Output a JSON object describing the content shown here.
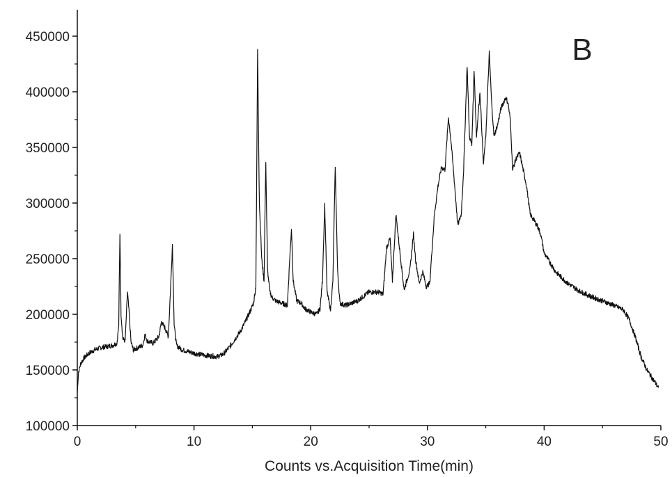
{
  "chart_data": {
    "type": "line",
    "title": "",
    "panel_label": "B",
    "xlabel": "Counts vs.Acquisition Time(min)",
    "ylabel": "",
    "xlim": [
      0,
      50
    ],
    "ylim": [
      100000,
      460000
    ],
    "x_ticks": [
      0,
      10,
      20,
      30,
      40,
      50
    ],
    "x_tick_labels": [
      "0",
      "10",
      "20",
      "30",
      "40",
      "50"
    ],
    "y_ticks": [
      100000,
      150000,
      200000,
      250000,
      300000,
      350000,
      400000,
      450000
    ],
    "y_tick_labels": [
      "100000",
      "150000",
      "200000",
      "250000",
      "300000",
      "350000",
      "400000",
      "450000"
    ],
    "grid": false,
    "legend": "none",
    "line_color": "#111111",
    "series": [
      {
        "x": [
          0,
          0.1,
          0.3,
          0.6,
          1.0,
          1.5,
          2.0,
          2.5,
          3.0,
          3.4,
          3.55,
          3.65,
          3.75,
          3.9,
          4.1,
          4.3,
          4.45,
          4.6,
          4.8,
          5.2,
          5.6,
          5.8,
          6.0,
          6.5,
          7.0,
          7.2,
          7.5,
          7.8,
          8.0,
          8.15,
          8.3,
          8.5,
          9.0,
          10.0,
          11.0,
          12.0,
          12.5,
          13.0,
          14.0,
          14.7,
          15.1,
          15.3,
          15.45,
          15.6,
          15.8,
          16.0,
          16.15,
          16.3,
          16.5,
          16.7,
          17.0,
          17.5,
          18.0,
          18.2,
          18.35,
          18.5,
          18.8,
          19.2,
          19.5,
          20.0,
          20.5,
          20.8,
          21.0,
          21.2,
          21.4,
          21.7,
          21.9,
          22.1,
          22.3,
          22.5,
          23.0,
          24.0,
          25.0,
          25.8,
          26.2,
          26.5,
          26.8,
          27.0,
          27.3,
          27.6,
          28.0,
          28.5,
          28.8,
          29.0,
          29.3,
          29.6,
          29.9,
          30.2,
          30.6,
          30.9,
          31.2,
          31.5,
          31.8,
          32.0,
          32.3,
          32.6,
          32.9,
          33.1,
          33.4,
          33.6,
          33.8,
          34.0,
          34.2,
          34.5,
          34.8,
          35.0,
          35.3,
          35.5,
          35.7,
          36.0,
          36.3,
          36.7,
          36.9,
          37.1,
          37.3,
          37.6,
          37.9,
          38.2,
          38.5,
          38.8,
          39.1,
          39.4,
          39.7,
          40.0,
          41.0,
          42.0,
          43.0,
          44.0,
          45.0,
          46.0,
          46.8,
          47.3,
          47.8,
          48.3,
          48.8,
          49.3,
          49.8
        ],
        "y": [
          130000,
          148000,
          156000,
          161000,
          165000,
          168000,
          170000,
          171000,
          172000,
          174000,
          190000,
          273000,
          200000,
          178000,
          176000,
          220000,
          200000,
          175000,
          168000,
          170000,
          172000,
          182000,
          176000,
          174000,
          180000,
          193000,
          188000,
          180000,
          225000,
          263000,
          190000,
          172000,
          168000,
          165000,
          163000,
          162000,
          164000,
          170000,
          185000,
          200000,
          210000,
          225000,
          437000,
          300000,
          250000,
          230000,
          338000,
          240000,
          220000,
          215000,
          212000,
          210000,
          208000,
          250000,
          277000,
          230000,
          212000,
          210000,
          205000,
          202000,
          200000,
          205000,
          230000,
          298000,
          220000,
          204000,
          230000,
          334000,
          240000,
          210000,
          208000,
          212000,
          220000,
          220000,
          218000,
          260000,
          268000,
          230000,
          290000,
          260000,
          222000,
          240000,
          272000,
          248000,
          228000,
          238000,
          225000,
          228000,
          290000,
          315000,
          332000,
          330000,
          377000,
          358000,
          320000,
          280000,
          290000,
          330000,
          424000,
          360000,
          352000,
          420000,
          360000,
          400000,
          335000,
          360000,
          435000,
          390000,
          360000,
          370000,
          385000,
          395000,
          390000,
          375000,
          330000,
          340000,
          345000,
          330000,
          315000,
          290000,
          285000,
          280000,
          272000,
          255000,
          238000,
          228000,
          221000,
          216000,
          212000,
          208000,
          204000,
          195000,
          180000,
          162000,
          150000,
          142000,
          134000
        ]
      }
    ]
  }
}
